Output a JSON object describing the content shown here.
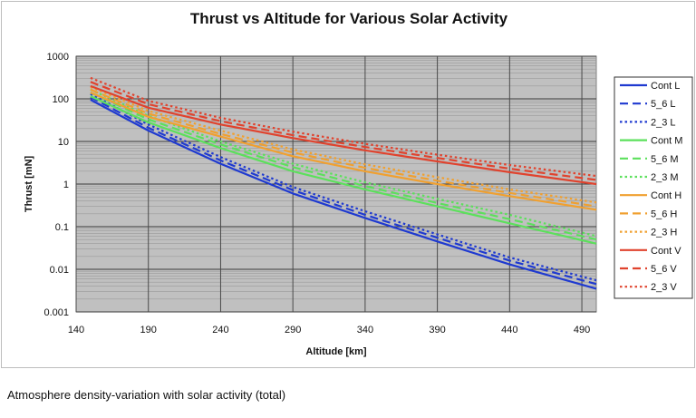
{
  "caption": "Atmosphere density-variation with solar activity (total)",
  "chart_data": {
    "type": "line",
    "title": "Thrust vs Altitude for Various Solar Activity",
    "xlabel": "Altitude [km]",
    "ylabel": "Thrust [mN]",
    "xlim": [
      140,
      500
    ],
    "ylim": [
      0.001,
      1000
    ],
    "yscale": "log",
    "grid": true,
    "xticks": [
      140,
      190,
      240,
      290,
      340,
      390,
      440,
      490
    ],
    "yticks": [
      {
        "value": 0.001,
        "label": "0.001"
      },
      {
        "value": 0.01,
        "label": "0.01"
      },
      {
        "value": 0.1,
        "label": "0.1"
      },
      {
        "value": 1,
        "label": "1"
      },
      {
        "value": 10,
        "label": "10"
      },
      {
        "value": 100,
        "label": "100"
      },
      {
        "value": 1000,
        "label": "1000"
      }
    ],
    "legend_position": "right",
    "x": [
      150,
      190,
      240,
      290,
      340,
      390,
      440,
      500
    ],
    "series": [
      {
        "name": "Cont L",
        "color": "#1f3ad0",
        "dash": "solid",
        "values": [
          95,
          18,
          3.0,
          0.6,
          0.16,
          0.045,
          0.013,
          0.0035
        ]
      },
      {
        "name": "5_6 L",
        "color": "#1f3ad0",
        "dash": "dash",
        "values": [
          110,
          21,
          3.6,
          0.72,
          0.19,
          0.055,
          0.016,
          0.0045
        ]
      },
      {
        "name": "2_3 L",
        "color": "#1f3ad0",
        "dash": "dot",
        "values": [
          130,
          25,
          4.3,
          0.85,
          0.23,
          0.066,
          0.019,
          0.0055
        ]
      },
      {
        "name": "Cont M",
        "color": "#5ce05c",
        "dash": "solid",
        "values": [
          115,
          28,
          7.0,
          2.0,
          0.75,
          0.3,
          0.12,
          0.04
        ]
      },
      {
        "name": "5_6 M",
        "color": "#5ce05c",
        "dash": "dash",
        "values": [
          140,
          33,
          8.5,
          2.5,
          0.9,
          0.36,
          0.15,
          0.05
        ]
      },
      {
        "name": "2_3 M",
        "color": "#5ce05c",
        "dash": "dot",
        "values": [
          165,
          40,
          10,
          3.0,
          1.1,
          0.45,
          0.19,
          0.06
        ]
      },
      {
        "name": "Cont H",
        "color": "#f0a030",
        "dash": "solid",
        "values": [
          140,
          38,
          13,
          4.5,
          2.0,
          1.0,
          0.52,
          0.25
        ]
      },
      {
        "name": "5_6 H",
        "color": "#f0a030",
        "dash": "dash",
        "values": [
          165,
          45,
          15,
          5.5,
          2.4,
          1.2,
          0.62,
          0.3
        ]
      },
      {
        "name": "2_3 H",
        "color": "#f0a030",
        "dash": "dot",
        "values": [
          190,
          52,
          18,
          6.5,
          2.9,
          1.45,
          0.75,
          0.37
        ]
      },
      {
        "name": "Cont V",
        "color": "#e0432e",
        "dash": "solid",
        "values": [
          200,
          62,
          25,
          12,
          6.2,
          3.4,
          1.9,
          1.0
        ]
      },
      {
        "name": "5_6 V",
        "color": "#e0432e",
        "dash": "dash",
        "values": [
          250,
          75,
          30,
          14,
          7.4,
          4.1,
          2.3,
          1.25
        ]
      },
      {
        "name": "2_3 V",
        "color": "#e0432e",
        "dash": "dot",
        "values": [
          310,
          90,
          36,
          17,
          8.8,
          4.9,
          2.8,
          1.55
        ]
      }
    ]
  }
}
